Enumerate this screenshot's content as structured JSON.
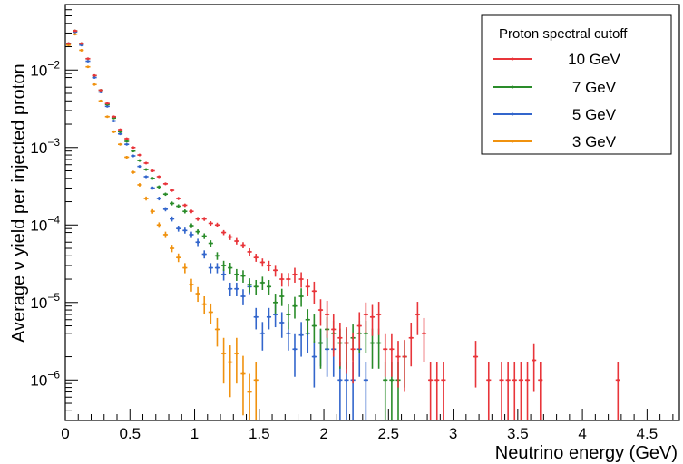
{
  "chart_data": {
    "type": "scatter",
    "xlabel": "Neutrino energy (GeV)",
    "ylabel": "Average ν yield per injected proton",
    "xlim": [
      0,
      4.75
    ],
    "ylim": [
      3e-07,
      0.07
    ],
    "y_scale": "log",
    "x_ticks": [
      {
        "value": 0,
        "label": "0"
      },
      {
        "value": 0.5,
        "label": "0.5"
      },
      {
        "value": 1,
        "label": "1"
      },
      {
        "value": 1.5,
        "label": "1.5"
      },
      {
        "value": 2,
        "label": "2"
      },
      {
        "value": 2.5,
        "label": "2.5"
      },
      {
        "value": 3,
        "label": "3"
      },
      {
        "value": 3.5,
        "label": "3.5"
      },
      {
        "value": 4,
        "label": "4"
      },
      {
        "value": 4.5,
        "label": "4.5"
      }
    ],
    "y_ticks": [
      {
        "value": 1e-06,
        "base": "10",
        "exp": "−6"
      },
      {
        "value": 1e-05,
        "base": "10",
        "exp": "−5"
      },
      {
        "value": 0.0001,
        "base": "10",
        "exp": "−4"
      },
      {
        "value": 0.001,
        "base": "10",
        "exp": "−3"
      },
      {
        "value": 0.01,
        "base": "10",
        "exp": "−2"
      }
    ],
    "grid": false,
    "legend": {
      "title": "Proton spectral cutoff",
      "position": "top-right",
      "entries": [
        "10 GeV",
        "7 GeV",
        "5 GeV",
        "3 GeV"
      ]
    },
    "bin_half_width": 0.025,
    "series": [
      {
        "name": "10 GeV",
        "color": "#e8353a",
        "x": [
          0.025,
          0.075,
          0.125,
          0.175,
          0.225,
          0.275,
          0.325,
          0.375,
          0.425,
          0.475,
          0.525,
          0.575,
          0.625,
          0.675,
          0.725,
          0.775,
          0.825,
          0.875,
          0.925,
          0.975,
          1.025,
          1.075,
          1.125,
          1.175,
          1.225,
          1.275,
          1.325,
          1.375,
          1.425,
          1.475,
          1.525,
          1.575,
          1.625,
          1.675,
          1.725,
          1.775,
          1.825,
          1.875,
          1.925,
          1.975,
          2.025,
          2.075,
          2.125,
          2.175,
          2.225,
          2.275,
          2.325,
          2.375,
          2.425,
          2.475,
          2.525,
          2.575,
          2.625,
          2.675,
          2.725,
          2.775,
          2.825,
          2.875,
          2.925,
          3.175,
          3.275,
          3.375,
          3.425,
          3.475,
          3.525,
          3.575,
          3.625,
          3.675,
          4.275
        ],
        "y": [
          0.022,
          0.032,
          0.022,
          0.014,
          0.0085,
          0.0055,
          0.0037,
          0.0025,
          0.0017,
          0.0013,
          0.001,
          0.0008,
          0.00063,
          0.0005,
          0.00042,
          0.00034,
          0.00028,
          0.00022,
          0.00018,
          0.00015,
          0.00012,
          0.00012,
          0.000105,
          0.0001,
          8e-05,
          7e-05,
          6.2e-05,
          5.5e-05,
          4.5e-05,
          3.8e-05,
          3.3e-05,
          3e-05,
          2.6e-05,
          2e-05,
          2e-05,
          2.3e-05,
          2e-05,
          1.6e-05,
          1.4e-05,
          8e-06,
          7e-06,
          4.5e-06,
          3.5e-06,
          3e-06,
          2.5e-06,
          5e-06,
          7e-06,
          6.5e-06,
          7e-06,
          2.5e-06,
          2.5e-06,
          2e-06,
          2e-06,
          3.5e-06,
          7e-06,
          4e-06,
          1e-06,
          1e-06,
          1e-06,
          2e-06,
          1e-06,
          1e-06,
          1e-06,
          1e-06,
          1e-06,
          1e-06,
          1.8e-06,
          1e-06,
          1e-06
        ],
        "err_lo": [
          0.0006,
          0.0008,
          0.0006,
          0.00035,
          0.0002,
          0.00014,
          0.0001,
          7e-05,
          5e-05,
          4e-05,
          3e-05,
          2.6e-05,
          2e-05,
          1.8e-05,
          1.6e-05,
          1.3e-05,
          1.2e-05,
          1e-05,
          9e-06,
          8e-06,
          7e-06,
          7e-06,
          7e-06,
          7e-06,
          6e-06,
          6e-06,
          6e-06,
          5e-06,
          5e-06,
          4.5e-06,
          4e-06,
          4.5e-06,
          4.5e-06,
          4e-06,
          4e-06,
          5e-06,
          4.5e-06,
          4e-06,
          4.5e-06,
          3e-06,
          3.5e-06,
          2.5e-06,
          2e-06,
          1.8e-06,
          1.6e-06,
          2.5e-06,
          3e-06,
          2.8e-06,
          3.2e-06,
          1.4e-06,
          1.4e-06,
          1.2e-06,
          1.3e-06,
          2e-06,
          3.2e-06,
          2.3e-06,
          7e-07,
          7e-07,
          7e-07,
          1.2e-06,
          7e-07,
          7e-07,
          7e-07,
          7e-07,
          7e-07,
          7e-07,
          1.1e-06,
          7e-07,
          7e-07
        ],
        "err_hi": [
          0.0006,
          0.0008,
          0.0006,
          0.00035,
          0.0002,
          0.00014,
          0.0001,
          7e-05,
          5e-05,
          4e-05,
          3e-05,
          2.6e-05,
          2e-05,
          1.8e-05,
          1.6e-05,
          1.3e-05,
          1.2e-05,
          1e-05,
          9e-06,
          8e-06,
          7e-06,
          7e-06,
          7e-06,
          7e-06,
          6e-06,
          6e-06,
          6e-06,
          5e-06,
          5e-06,
          4.5e-06,
          4e-06,
          4.5e-06,
          4.5e-06,
          4e-06,
          4e-06,
          5e-06,
          4.5e-06,
          4e-06,
          4.5e-06,
          3e-06,
          3.5e-06,
          2.5e-06,
          2e-06,
          1.8e-06,
          1.6e-06,
          2.5e-06,
          3e-06,
          2.8e-06,
          3.2e-06,
          1.4e-06,
          1.4e-06,
          1.2e-06,
          1.3e-06,
          2e-06,
          3.2e-06,
          2.3e-06,
          7e-07,
          7e-07,
          7e-07,
          1.2e-06,
          7e-07,
          7e-07,
          7e-07,
          7e-07,
          7e-07,
          7e-07,
          1.1e-06,
          7e-07,
          7e-07
        ]
      },
      {
        "name": "7 GeV",
        "color": "#2a8c2a",
        "x": [
          0.025,
          0.075,
          0.125,
          0.175,
          0.225,
          0.275,
          0.325,
          0.375,
          0.425,
          0.475,
          0.525,
          0.575,
          0.625,
          0.675,
          0.725,
          0.775,
          0.825,
          0.875,
          0.925,
          0.975,
          1.025,
          1.075,
          1.125,
          1.175,
          1.225,
          1.275,
          1.325,
          1.375,
          1.425,
          1.475,
          1.525,
          1.575,
          1.625,
          1.675,
          1.725,
          1.775,
          1.825,
          1.875,
          1.925,
          1.975,
          2.025,
          2.075,
          2.125,
          2.175,
          2.225,
          2.275,
          2.325,
          2.375,
          2.425,
          2.475,
          2.525,
          2.575,
          2.625
        ],
        "y": [
          0.022,
          0.032,
          0.022,
          0.014,
          0.0085,
          0.0055,
          0.0036,
          0.0024,
          0.0016,
          0.0012,
          0.0009,
          0.00068,
          0.00052,
          0.0004,
          0.00031,
          0.00025,
          0.00019,
          0.000175,
          0.00015,
          9.8e-05,
          8.2e-05,
          7.2e-05,
          5.8e-05,
          4e-05,
          3e-05,
          2.8e-05,
          2.3e-05,
          2.2e-05,
          1.7e-05,
          1.6e-05,
          1.8e-05,
          1.6e-05,
          1e-05,
          1.2e-05,
          7e-06,
          9e-06,
          1.2e-05,
          6e-06,
          5e-06,
          3e-06,
          4.5e-06,
          4e-06,
          3e-06,
          3e-06,
          3.5e-06,
          4e-06,
          4e-06,
          3e-06,
          3e-06,
          1e-06,
          1e-06,
          1e-06,
          2e-06
        ],
        "err_lo": [
          0.0006,
          0.0008,
          0.0006,
          0.00035,
          0.0002,
          0.00014,
          0.0001,
          7e-05,
          5e-05,
          4e-05,
          3e-05,
          2.4e-05,
          1.9e-05,
          1.6e-05,
          1.4e-05,
          1.2e-05,
          1.1e-05,
          1e-05,
          9e-06,
          7e-06,
          6e-06,
          6e-06,
          5.5e-06,
          4.5e-06,
          4.5e-06,
          4.5e-06,
          4e-06,
          4e-06,
          3.5e-06,
          3.5e-06,
          3.5e-06,
          3.5e-06,
          3e-06,
          3e-06,
          2.5e-06,
          2.8e-06,
          3.2e-06,
          2.2e-06,
          2e-06,
          1.6e-06,
          2e-06,
          1.8e-06,
          1.6e-06,
          1.6e-06,
          1.7e-06,
          1.8e-06,
          1.8e-06,
          1.6e-06,
          1.6e-06,
          7e-07,
          7e-07,
          7e-07,
          1.2e-06
        ],
        "err_hi": [
          0.0006,
          0.0008,
          0.0006,
          0.00035,
          0.0002,
          0.00014,
          0.0001,
          7e-05,
          5e-05,
          4e-05,
          3e-05,
          2.4e-05,
          1.9e-05,
          1.6e-05,
          1.4e-05,
          1.2e-05,
          1.1e-05,
          1e-05,
          9e-06,
          7e-06,
          6e-06,
          6e-06,
          5.5e-06,
          4.5e-06,
          4.5e-06,
          4.5e-06,
          4e-06,
          4e-06,
          3.5e-06,
          3.5e-06,
          3.5e-06,
          3.5e-06,
          3e-06,
          3e-06,
          2.5e-06,
          2.8e-06,
          3.2e-06,
          2.2e-06,
          2e-06,
          1.6e-06,
          2e-06,
          1.8e-06,
          1.6e-06,
          1.6e-06,
          1.7e-06,
          1.8e-06,
          1.8e-06,
          1.6e-06,
          1.6e-06,
          7e-07,
          7e-07,
          7e-07,
          1.2e-06
        ]
      },
      {
        "name": "5 GeV",
        "color": "#3366cc",
        "x": [
          0.025,
          0.075,
          0.125,
          0.175,
          0.225,
          0.275,
          0.325,
          0.375,
          0.425,
          0.475,
          0.525,
          0.575,
          0.625,
          0.675,
          0.725,
          0.775,
          0.825,
          0.875,
          0.925,
          0.975,
          1.025,
          1.075,
          1.125,
          1.175,
          1.225,
          1.275,
          1.325,
          1.375,
          1.425,
          1.475,
          1.525,
          1.575,
          1.625,
          1.675,
          1.725,
          1.775,
          1.825,
          1.875,
          1.925,
          1.975,
          2.025,
          2.075,
          2.125,
          2.175,
          2.225,
          2.275,
          2.325
        ],
        "y": [
          0.022,
          0.031,
          0.021,
          0.013,
          0.008,
          0.0052,
          0.0034,
          0.0022,
          0.0015,
          0.0011,
          0.00078,
          0.00057,
          0.00042,
          0.0003,
          0.00022,
          0.00016,
          0.00012,
          9e-05,
          8.5e-05,
          7.5e-05,
          6e-05,
          4.2e-05,
          2.8e-05,
          2.8e-05,
          2.3e-05,
          1.5e-05,
          1.5e-05,
          1.2e-05,
          1.6e-05,
          6.5e-06,
          4e-06,
          6.5e-06,
          7e-06,
          5.5e-06,
          4e-06,
          2.5e-06,
          3.8e-06,
          4e-06,
          2e-06,
          3e-06,
          2.5e-06,
          2.5e-06,
          1e-06,
          1e-06,
          1e-06,
          2.5e-06,
          1e-06
        ],
        "err_lo": [
          0.0006,
          0.0008,
          0.0006,
          0.00035,
          0.0002,
          0.00014,
          0.0001,
          7e-05,
          5e-05,
          4e-05,
          3e-05,
          2.2e-05,
          1.7e-05,
          1.4e-05,
          1.2e-05,
          1e-05,
          9e-06,
          8e-06,
          7.5e-06,
          7e-06,
          6.5e-06,
          5e-06,
          4.2e-06,
          4.2e-06,
          3.8e-06,
          3e-06,
          3e-06,
          2.8e-06,
          3.2e-06,
          2e-06,
          1.6e-06,
          2e-06,
          2.2e-06,
          2e-06,
          1.6e-06,
          1.4e-06,
          1.8e-06,
          1.8e-06,
          1.2e-06,
          1.5e-06,
          1.4e-06,
          1.4e-06,
          7e-07,
          7e-07,
          7e-07,
          1.4e-06,
          7e-07
        ],
        "err_hi": [
          0.0006,
          0.0008,
          0.0006,
          0.00035,
          0.0002,
          0.00014,
          0.0001,
          7e-05,
          5e-05,
          4e-05,
          3e-05,
          2.2e-05,
          1.7e-05,
          1.4e-05,
          1.2e-05,
          1e-05,
          9e-06,
          8e-06,
          7.5e-06,
          7e-06,
          6.5e-06,
          5e-06,
          4.2e-06,
          4.2e-06,
          3.8e-06,
          3e-06,
          3e-06,
          2.8e-06,
          3.2e-06,
          2e-06,
          1.6e-06,
          2e-06,
          2.2e-06,
          2e-06,
          1.6e-06,
          1.4e-06,
          1.8e-06,
          1.8e-06,
          1.2e-06,
          1.5e-06,
          1.4e-06,
          1.4e-06,
          7e-07,
          7e-07,
          7e-07,
          1.4e-06,
          7e-07
        ]
      },
      {
        "name": "3 GeV",
        "color": "#f0920f",
        "x": [
          0.025,
          0.075,
          0.125,
          0.175,
          0.225,
          0.275,
          0.325,
          0.375,
          0.425,
          0.475,
          0.525,
          0.575,
          0.625,
          0.675,
          0.725,
          0.775,
          0.825,
          0.875,
          0.925,
          0.975,
          1.025,
          1.075,
          1.125,
          1.175,
          1.225,
          1.275,
          1.325,
          1.375,
          1.425,
          1.475
        ],
        "y": [
          0.021,
          0.029,
          0.018,
          0.011,
          0.0065,
          0.004,
          0.0025,
          0.0016,
          0.0011,
          0.00075,
          0.00048,
          0.00033,
          0.00022,
          0.00015,
          0.0001,
          7.5e-05,
          5e-05,
          3.8e-05,
          2.8e-05,
          1.7e-05,
          1.3e-05,
          9.5e-06,
          7.5e-06,
          4.5e-06,
          2.2e-06,
          1.7e-06,
          2.2e-06,
          1.2e-06,
          7e-07,
          1e-06
        ],
        "err_lo": [
          0.0006,
          0.0008,
          0.0006,
          0.00035,
          0.0002,
          0.00013,
          9e-05,
          6e-05,
          4e-05,
          3e-05,
          2.2e-05,
          1.7e-05,
          1.3e-05,
          1e-05,
          8e-06,
          7e-06,
          5.5e-06,
          4.8e-06,
          4.2e-06,
          3.2e-06,
          2.8e-06,
          2.5e-06,
          2.2e-06,
          1.8e-06,
          1.3e-06,
          1.1e-06,
          1.3e-06,
          8.5e-07,
          4e-07,
          7e-07
        ],
        "err_hi": [
          0.0006,
          0.0008,
          0.0006,
          0.00035,
          0.0002,
          0.00013,
          9e-05,
          6e-05,
          4e-05,
          3e-05,
          2.2e-05,
          1.7e-05,
          1.3e-05,
          1e-05,
          8e-06,
          7e-06,
          5.5e-06,
          4.8e-06,
          4.2e-06,
          3.2e-06,
          2.8e-06,
          2.5e-06,
          2.2e-06,
          1.8e-06,
          1.3e-06,
          1.1e-06,
          1.3e-06,
          8.5e-07,
          5e-07,
          7e-07
        ]
      }
    ]
  }
}
